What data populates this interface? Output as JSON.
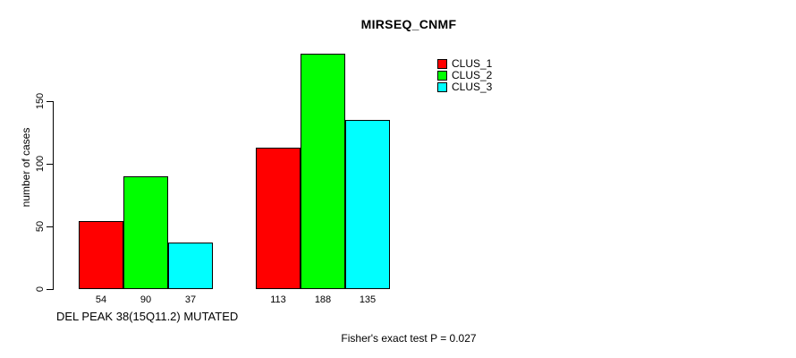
{
  "footer": {
    "text": "Fisher's exact test P = 0.027"
  },
  "colors": {
    "background": "#FFFFFF",
    "axis": "#000000",
    "text": "#000000",
    "clus_1": "#FF0000",
    "clus_2": "#00FF00",
    "clus_3": "#00FFFF"
  },
  "chart_data": {
    "type": "bar",
    "title": "MIRSEQ_CNMF",
    "ylabel": "number of cases",
    "xlabel": "DEL PEAK 38(15Q11.2) MUTATED",
    "categories": [
      "DEL PEAK 38(15Q11.2) MUTATED",
      ""
    ],
    "series": [
      {
        "name": "CLUS_1",
        "color": "#FF0000",
        "values": [
          54,
          113
        ]
      },
      {
        "name": "CLUS_2",
        "color": "#00FF00",
        "values": [
          90,
          188
        ]
      },
      {
        "name": "CLUS_3",
        "color": "#00FFFF",
        "values": [
          37,
          135
        ]
      }
    ],
    "y_ticks": [
      0,
      50,
      100,
      150
    ],
    "ylim": [
      0,
      150
    ],
    "show_bar_values": true,
    "grid": false,
    "legend_position": "top-right",
    "annotations": [
      "Fisher's exact test P = 0.027"
    ]
  }
}
